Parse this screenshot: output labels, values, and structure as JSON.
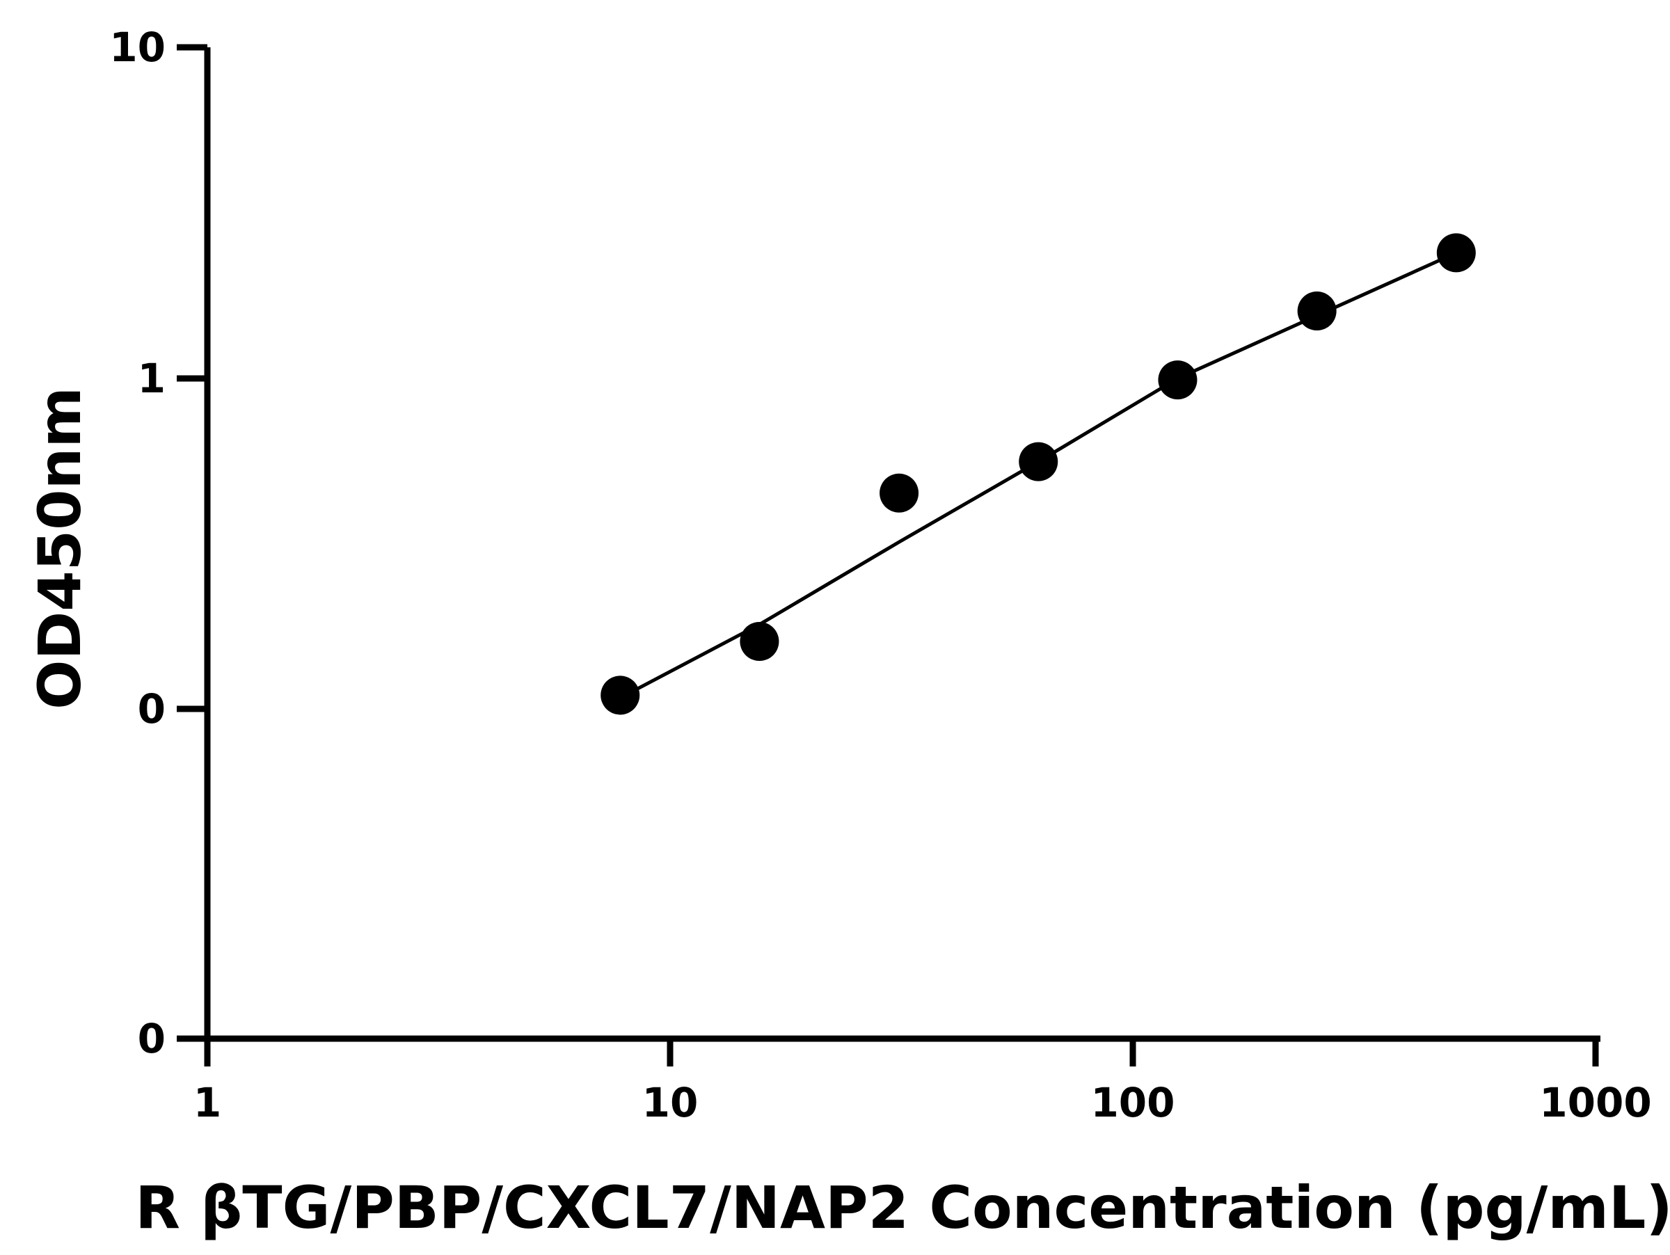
{
  "chart_data": {
    "type": "scatter",
    "xlabel": "R βTG/PBP/CXCL7/NAP2 Concentration (pg/mL)",
    "ylabel": "OD450nm",
    "x_scale": "log",
    "x_ticks": [
      1,
      10,
      100,
      1000
    ],
    "x_tick_labels": [
      "1",
      "10",
      "100",
      "1000"
    ],
    "xlim": [
      1,
      1000
    ],
    "y_tick_labels": [
      "10",
      "1",
      "0",
      "0"
    ],
    "y_scale": "log",
    "series": [
      {
        "x": [
          7.8,
          15.6,
          31.25,
          62.5,
          125,
          250,
          500
        ],
        "y": [
          0.11,
          0.16,
          0.45,
          0.56,
          0.99,
          1.6,
          2.4
        ]
      }
    ],
    "fit_curve": {
      "x": [
        8.0,
        15.6,
        31.25,
        62.5,
        125,
        250,
        500
      ],
      "y": [
        0.11,
        0.18,
        0.32,
        0.56,
        1.0,
        1.55,
        2.4
      ]
    },
    "grid": false,
    "legend": "none",
    "colors": {
      "marker": "#000000",
      "line": "#000000",
      "axis": "#000000"
    }
  }
}
